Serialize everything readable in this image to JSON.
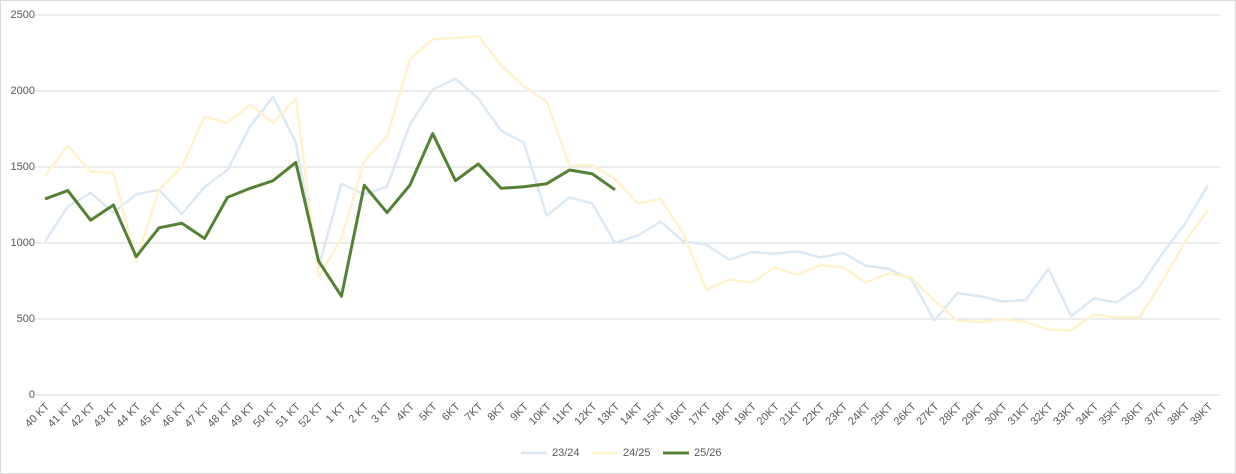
{
  "chart_data": {
    "type": "line",
    "categories": [
      "40 KT",
      "41 KT",
      "42 KT",
      "43 KT",
      "44 KT",
      "45 KT",
      "46 KT",
      "47 KT",
      "48  KT",
      "49 KT",
      "50 KT",
      "51 KT",
      "52 KT",
      "1 KT",
      "2 KT",
      "3 KT",
      "4KT",
      "5KT",
      "6KT",
      "7KT",
      "8KT",
      "9KT",
      "10KT",
      "11KT",
      "12KT",
      "13KT",
      "14KT",
      "15KT",
      "16KT",
      "17KT",
      "18KT",
      "19KT",
      "20KT",
      "21KT",
      "22KT",
      "23KT",
      "24KT",
      "25KT",
      "26KT",
      "27KT",
      "28KT",
      "29KT",
      "30KT",
      "31KT",
      "32KT",
      "33KT",
      "34KT",
      "35KT",
      "36KT",
      "37KT",
      "38KT",
      "39KT"
    ],
    "series": [
      {
        "name": "23/24",
        "color": "#dce8f4",
        "values": [
          1010,
          1240,
          1330,
          1200,
          1320,
          1350,
          1190,
          1370,
          1480,
          1770,
          1960,
          1660,
          840,
          1390,
          1320,
          1370,
          1780,
          2010,
          2080,
          1950,
          1740,
          1660,
          1180,
          1300,
          1260,
          1000,
          1050,
          1140,
          1010,
          990,
          890,
          940,
          930,
          945,
          905,
          935,
          850,
          830,
          760,
          490,
          670,
          650,
          615,
          625,
          830,
          520,
          635,
          610,
          710,
          930,
          1130,
          1380
        ]
      },
      {
        "name": "24/25",
        "color": "#fff2cc",
        "values": [
          1440,
          1640,
          1470,
          1460,
          880,
          1350,
          1500,
          1830,
          1790,
          1910,
          1790,
          1950,
          780,
          1030,
          1540,
          1700,
          2210,
          2340,
          2350,
          2360,
          2170,
          2030,
          1930,
          1510,
          1510,
          1420,
          1260,
          1290,
          1060,
          690,
          760,
          740,
          840,
          790,
          855,
          840,
          740,
          800,
          770,
          620,
          490,
          480,
          500,
          480,
          430,
          425,
          530,
          510,
          510,
          750,
          1010,
          1220
        ]
      },
      {
        "name": "25/26",
        "color": "#548235",
        "values": [
          1290,
          1345,
          1150,
          1250,
          910,
          1100,
          1130,
          1030,
          1300,
          1360,
          1410,
          1530,
          880,
          650,
          1380,
          1200,
          1380,
          1720,
          1410,
          1520,
          1360,
          1370,
          1390,
          1480,
          1455,
          1350,
          null,
          null,
          null,
          null,
          null,
          null,
          null,
          null,
          null,
          null,
          null,
          null,
          null,
          null,
          null,
          null,
          null,
          null,
          null,
          null,
          null,
          null,
          null,
          null,
          null,
          null
        ]
      }
    ],
    "ylim": [
      0,
      2500
    ],
    "yticks": [
      0,
      500,
      1000,
      1500,
      2000,
      2500
    ],
    "grid": true,
    "legend": "bottom"
  }
}
